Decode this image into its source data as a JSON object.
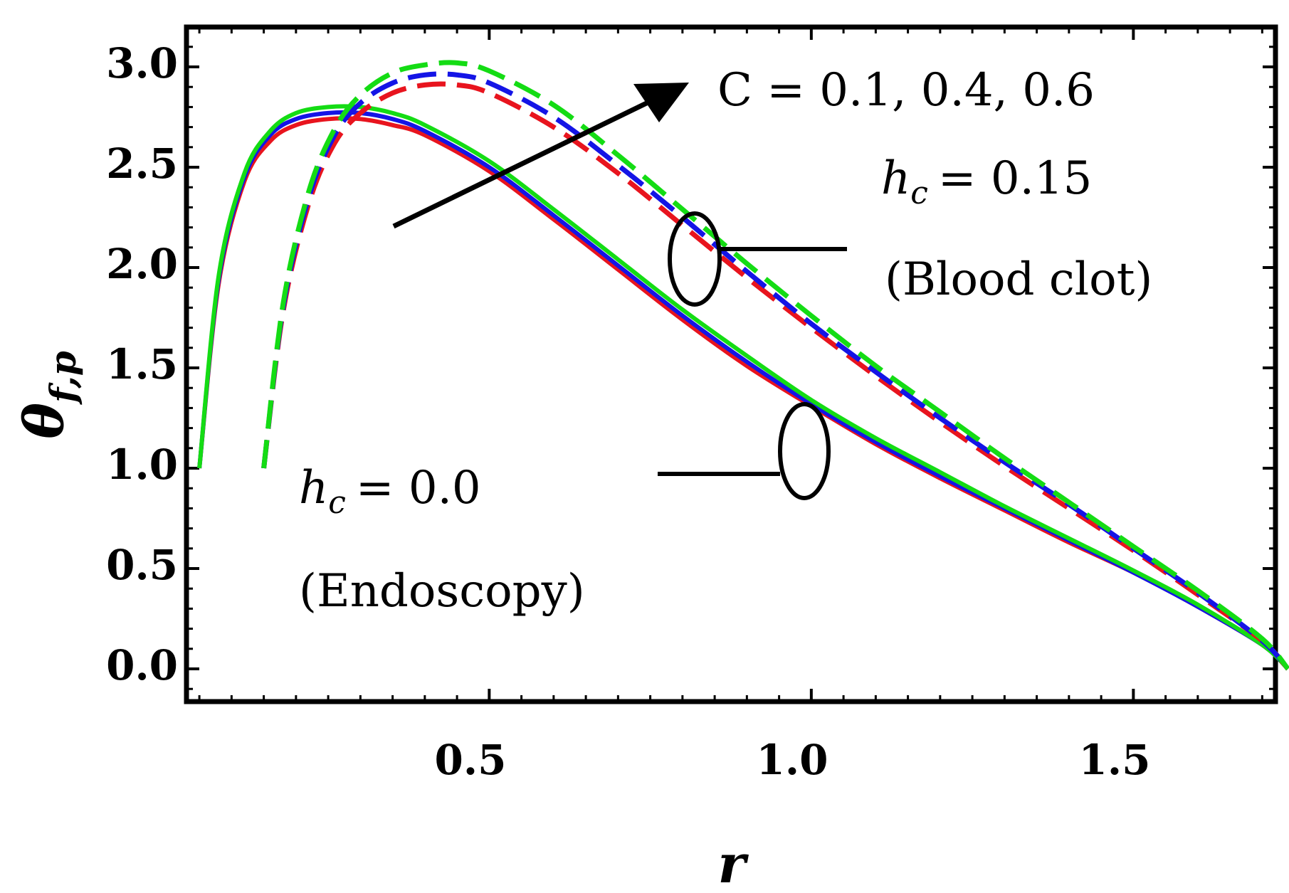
{
  "chart_data": {
    "type": "line",
    "title": "",
    "xlabel": "r",
    "ylabel": "θ",
    "ylabel_sub": "f,p",
    "xlim": [
      0.03,
      1.75
    ],
    "ylim": [
      -0.15,
      3.2
    ],
    "xticks": [
      0.5,
      1.0,
      1.5
    ],
    "xtick_labels": [
      "0.5",
      "1.0",
      "1.5"
    ],
    "yticks": [
      0.0,
      0.5,
      1.0,
      1.5,
      2.0,
      2.5,
      3.0
    ],
    "ytick_labels": [
      "0.0",
      "0.5",
      "1.0",
      "1.5",
      "2.0",
      "2.5",
      "3.0"
    ],
    "colors": {
      "c01": "#e8141e",
      "c04": "#1414e6",
      "c06": "#14dc14",
      "axis": "#000000"
    },
    "series": [
      {
        "name": "C = 0.1, hc = 0.0",
        "group": "endoscopy",
        "style": "solid",
        "color": "#e8141e",
        "x": [
          0.05,
          0.08,
          0.12,
          0.16,
          0.2,
          0.25,
          0.3,
          0.35,
          0.4,
          0.5,
          0.6,
          0.7,
          0.8,
          0.9,
          1.0,
          1.1,
          1.2,
          1.3,
          1.4,
          1.5,
          1.6,
          1.7,
          1.74
        ],
        "y": [
          1.0,
          1.92,
          2.43,
          2.63,
          2.71,
          2.74,
          2.74,
          2.71,
          2.66,
          2.48,
          2.24,
          1.99,
          1.74,
          1.51,
          1.31,
          1.12,
          0.95,
          0.79,
          0.63,
          0.48,
          0.31,
          0.12,
          0.0
        ]
      },
      {
        "name": "C = 0.4, hc = 0.0",
        "group": "endoscopy",
        "style": "solid",
        "color": "#1414e6",
        "x": [
          0.05,
          0.08,
          0.12,
          0.16,
          0.2,
          0.25,
          0.3,
          0.35,
          0.4,
          0.5,
          0.6,
          0.7,
          0.8,
          0.9,
          1.0,
          1.1,
          1.2,
          1.3,
          1.4,
          1.5,
          1.6,
          1.7,
          1.74
        ],
        "y": [
          1.0,
          1.94,
          2.45,
          2.66,
          2.74,
          2.77,
          2.77,
          2.74,
          2.68,
          2.5,
          2.26,
          2.01,
          1.76,
          1.53,
          1.32,
          1.13,
          0.96,
          0.8,
          0.64,
          0.48,
          0.31,
          0.12,
          0.0
        ]
      },
      {
        "name": "C = 0.6, hc = 0.0",
        "group": "endoscopy",
        "style": "solid",
        "color": "#14dc14",
        "x": [
          0.05,
          0.08,
          0.12,
          0.16,
          0.2,
          0.25,
          0.3,
          0.35,
          0.4,
          0.5,
          0.6,
          0.7,
          0.8,
          0.9,
          1.0,
          1.1,
          1.2,
          1.3,
          1.4,
          1.5,
          1.6,
          1.7,
          1.74
        ],
        "y": [
          1.0,
          1.96,
          2.47,
          2.68,
          2.77,
          2.8,
          2.8,
          2.77,
          2.71,
          2.53,
          2.29,
          2.04,
          1.79,
          1.56,
          1.34,
          1.15,
          0.98,
          0.81,
          0.65,
          0.49,
          0.32,
          0.12,
          0.0
        ]
      },
      {
        "name": "C = 0.1, hc = 0.15",
        "group": "blood-clot",
        "style": "dashed",
        "color": "#e8141e",
        "x": [
          0.15,
          0.18,
          0.22,
          0.26,
          0.3,
          0.35,
          0.4,
          0.45,
          0.5,
          0.6,
          0.7,
          0.8,
          0.9,
          1.0,
          1.1,
          1.2,
          1.3,
          1.4,
          1.5,
          1.6,
          1.7,
          1.74
        ],
        "y": [
          1.0,
          1.78,
          2.32,
          2.62,
          2.77,
          2.87,
          2.91,
          2.91,
          2.87,
          2.7,
          2.47,
          2.21,
          1.95,
          1.7,
          1.46,
          1.23,
          1.01,
          0.8,
          0.59,
          0.37,
          0.14,
          0.0
        ]
      },
      {
        "name": "C = 0.4, hc = 0.15",
        "group": "blood-clot",
        "style": "dashed",
        "color": "#1414e6",
        "x": [
          0.15,
          0.18,
          0.22,
          0.26,
          0.3,
          0.35,
          0.4,
          0.45,
          0.5,
          0.6,
          0.7,
          0.8,
          0.9,
          1.0,
          1.1,
          1.2,
          1.3,
          1.4,
          1.5,
          1.6,
          1.7,
          1.74
        ],
        "y": [
          1.0,
          1.8,
          2.35,
          2.66,
          2.82,
          2.92,
          2.96,
          2.96,
          2.92,
          2.75,
          2.51,
          2.25,
          1.98,
          1.72,
          1.48,
          1.25,
          1.03,
          0.82,
          0.6,
          0.38,
          0.14,
          0.0
        ]
      },
      {
        "name": "C = 0.6, hc = 0.15",
        "group": "blood-clot",
        "style": "dashed",
        "color": "#14dc14",
        "x": [
          0.15,
          0.18,
          0.22,
          0.26,
          0.3,
          0.35,
          0.4,
          0.45,
          0.5,
          0.6,
          0.7,
          0.8,
          0.9,
          1.0,
          1.1,
          1.2,
          1.3,
          1.4,
          1.5,
          1.6,
          1.7,
          1.74
        ],
        "y": [
          1.0,
          1.82,
          2.38,
          2.69,
          2.86,
          2.97,
          3.01,
          3.02,
          2.98,
          2.81,
          2.56,
          2.29,
          2.02,
          1.76,
          1.51,
          1.28,
          1.05,
          0.83,
          0.61,
          0.39,
          0.15,
          0.0
        ]
      }
    ],
    "annotations": {
      "c_values": "C = 0.1, 0.4, 0.6",
      "hc_symbol": "h",
      "hc_sub": "c",
      "hc_clot_value": "= 0.15",
      "clot_label": "(Blood clot)",
      "hc_endo_value": "= 0.0",
      "endo_label": "(Endoscopy)"
    }
  }
}
